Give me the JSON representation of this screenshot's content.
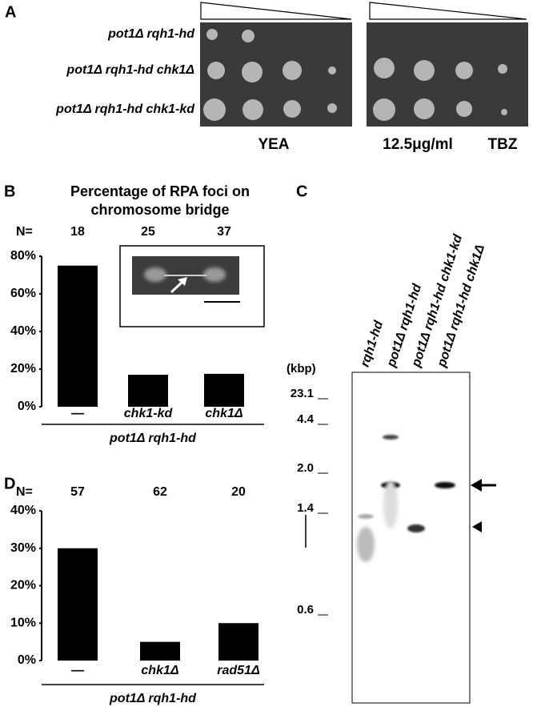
{
  "panel_a": {
    "label": "A",
    "strains": [
      "pot1Δ rqh1-hd",
      "pot1Δ rqh1-hd chk1Δ",
      "pot1Δ rqh1-hd chk1-kd"
    ],
    "conditions": [
      "YEA",
      "12.5μg/ml",
      "TBZ"
    ]
  },
  "panel_c": {
    "label": "C",
    "unit": "(kbp)",
    "lanes": [
      "rqh1-hd",
      "pot1Δ  rqh1-hd",
      "pot1Δ  rqh1-hd chk1-kd",
      "pot1Δ  rqh1-hd chk1Δ"
    ],
    "markers": [
      "23.1",
      "4.4",
      "2.0",
      "1.4",
      "0.6"
    ]
  },
  "chart_data": [
    {
      "type": "bar",
      "panel": "B",
      "title": [
        "Percentage of RPA foci on",
        "chromosome bridge"
      ],
      "n_label": "N=",
      "n_values": [
        18,
        25,
        37
      ],
      "categories": [
        "—",
        "chk1-kd",
        "chk1Δ"
      ],
      "values": [
        75,
        17,
        17.5
      ],
      "color": "#000000",
      "group_label": "pot1Δ rqh1-hd",
      "ylim": [
        0,
        80
      ],
      "yticks": [
        {
          "value": 0,
          "label": "0%"
        },
        {
          "value": 20,
          "label": "20%"
        },
        {
          "value": 40,
          "label": "40%"
        },
        {
          "value": 60,
          "label": "60%"
        },
        {
          "value": 80,
          "label": "80%"
        }
      ]
    },
    {
      "type": "bar",
      "panel": "D",
      "n_label": "N=",
      "n_values": [
        57,
        62,
        20
      ],
      "categories": [
        "—",
        "chk1Δ",
        "rad51Δ"
      ],
      "values": [
        30,
        5,
        10
      ],
      "color": "#000000",
      "group_label": "pot1Δ rqh1-hd",
      "ylim": [
        0,
        40
      ],
      "yticks": [
        {
          "value": 0,
          "label": "0%"
        },
        {
          "value": 10,
          "label": "10%"
        },
        {
          "value": 20,
          "label": "20%"
        },
        {
          "value": 30,
          "label": "30%"
        },
        {
          "value": 40,
          "label": "40%"
        }
      ]
    }
  ]
}
